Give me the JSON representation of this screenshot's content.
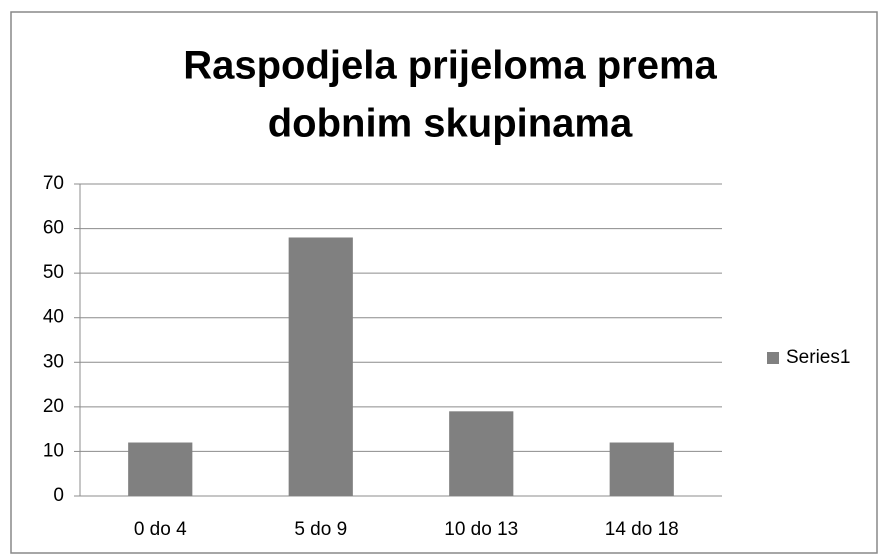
{
  "chart_data": {
    "type": "bar",
    "title": [
      "Raspodjela prijeloma prema",
      "dobnim skupinama"
    ],
    "categories": [
      "0 do 4",
      "5 do 9",
      "10 do 13",
      "14 do 18"
    ],
    "series": [
      {
        "name": "Series1",
        "color": "#808080",
        "values": [
          12,
          58,
          19,
          12
        ]
      }
    ],
    "ylim": [
      0,
      70
    ],
    "yticks": [
      0,
      10,
      20,
      30,
      40,
      50,
      60,
      70
    ],
    "grid": true,
    "legend": "right"
  }
}
